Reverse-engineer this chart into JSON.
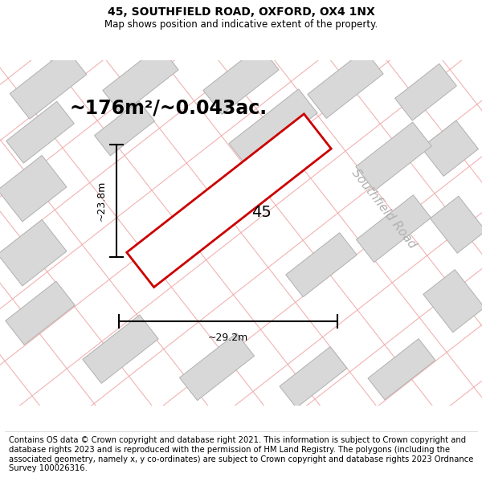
{
  "title": "45, SOUTHFIELD ROAD, OXFORD, OX4 1NX",
  "subtitle": "Map shows position and indicative extent of the property.",
  "area_text": "~176m²/~0.043ac.",
  "number_label": "45",
  "dim_width": "~29.2m",
  "dim_height": "~23.8m",
  "road_label": "Southfield Road",
  "footer": "Contains OS data © Crown copyright and database right 2021. This information is subject to Crown copyright and database rights 2023 and is reproduced with the permission of HM Land Registry. The polygons (including the associated geometry, namely x, y co-ordinates) are subject to Crown copyright and database rights 2023 Ordnance Survey 100026316.",
  "map_bg": "#f2f2f2",
  "building_fill": "#d8d8d8",
  "building_edge": "#b0b0b0",
  "road_stripe_color": "#f0aaaa",
  "plot_outline_color": "#cc0000",
  "plot_fill": "#ffffff",
  "title_fontsize": 10,
  "subtitle_fontsize": 8.5,
  "area_fontsize": 17,
  "number_fontsize": 14,
  "dim_fontsize": 9,
  "road_fontsize": 11,
  "footer_fontsize": 7.2
}
